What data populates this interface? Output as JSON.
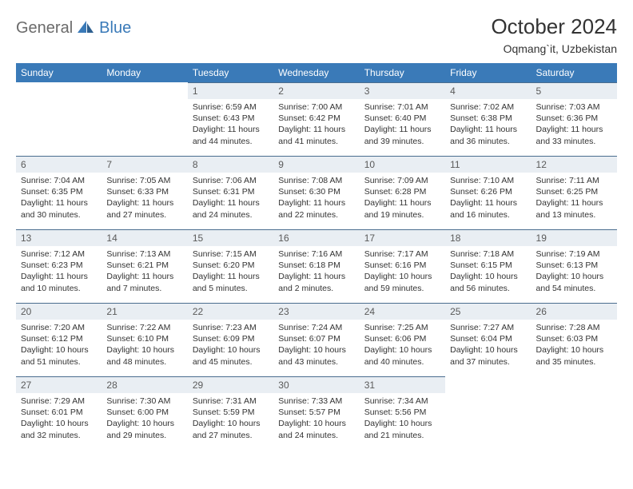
{
  "brand": {
    "part1": "General",
    "part2": "Blue"
  },
  "title": "October 2024",
  "location": "Oqmang`it, Uzbekistan",
  "colors": {
    "header_bg": "#3a7ab8",
    "header_fg": "#ffffff",
    "daynum_bg": "#e9eef3",
    "daynum_border": "#4a6d8f",
    "text": "#333333",
    "logo_gray": "#6b6b6b",
    "logo_blue": "#3a7ab8",
    "page_bg": "#ffffff"
  },
  "weekdays": [
    "Sunday",
    "Monday",
    "Tuesday",
    "Wednesday",
    "Thursday",
    "Friday",
    "Saturday"
  ],
  "layout": {
    "first_day_col": 2,
    "num_days": 31
  },
  "days": {
    "1": {
      "sunrise": "6:59 AM",
      "sunset": "6:43 PM",
      "daylight": "11 hours and 44 minutes."
    },
    "2": {
      "sunrise": "7:00 AM",
      "sunset": "6:42 PM",
      "daylight": "11 hours and 41 minutes."
    },
    "3": {
      "sunrise": "7:01 AM",
      "sunset": "6:40 PM",
      "daylight": "11 hours and 39 minutes."
    },
    "4": {
      "sunrise": "7:02 AM",
      "sunset": "6:38 PM",
      "daylight": "11 hours and 36 minutes."
    },
    "5": {
      "sunrise": "7:03 AM",
      "sunset": "6:36 PM",
      "daylight": "11 hours and 33 minutes."
    },
    "6": {
      "sunrise": "7:04 AM",
      "sunset": "6:35 PM",
      "daylight": "11 hours and 30 minutes."
    },
    "7": {
      "sunrise": "7:05 AM",
      "sunset": "6:33 PM",
      "daylight": "11 hours and 27 minutes."
    },
    "8": {
      "sunrise": "7:06 AM",
      "sunset": "6:31 PM",
      "daylight": "11 hours and 24 minutes."
    },
    "9": {
      "sunrise": "7:08 AM",
      "sunset": "6:30 PM",
      "daylight": "11 hours and 22 minutes."
    },
    "10": {
      "sunrise": "7:09 AM",
      "sunset": "6:28 PM",
      "daylight": "11 hours and 19 minutes."
    },
    "11": {
      "sunrise": "7:10 AM",
      "sunset": "6:26 PM",
      "daylight": "11 hours and 16 minutes."
    },
    "12": {
      "sunrise": "7:11 AM",
      "sunset": "6:25 PM",
      "daylight": "11 hours and 13 minutes."
    },
    "13": {
      "sunrise": "7:12 AM",
      "sunset": "6:23 PM",
      "daylight": "11 hours and 10 minutes."
    },
    "14": {
      "sunrise": "7:13 AM",
      "sunset": "6:21 PM",
      "daylight": "11 hours and 7 minutes."
    },
    "15": {
      "sunrise": "7:15 AM",
      "sunset": "6:20 PM",
      "daylight": "11 hours and 5 minutes."
    },
    "16": {
      "sunrise": "7:16 AM",
      "sunset": "6:18 PM",
      "daylight": "11 hours and 2 minutes."
    },
    "17": {
      "sunrise": "7:17 AM",
      "sunset": "6:16 PM",
      "daylight": "10 hours and 59 minutes."
    },
    "18": {
      "sunrise": "7:18 AM",
      "sunset": "6:15 PM",
      "daylight": "10 hours and 56 minutes."
    },
    "19": {
      "sunrise": "7:19 AM",
      "sunset": "6:13 PM",
      "daylight": "10 hours and 54 minutes."
    },
    "20": {
      "sunrise": "7:20 AM",
      "sunset": "6:12 PM",
      "daylight": "10 hours and 51 minutes."
    },
    "21": {
      "sunrise": "7:22 AM",
      "sunset": "6:10 PM",
      "daylight": "10 hours and 48 minutes."
    },
    "22": {
      "sunrise": "7:23 AM",
      "sunset": "6:09 PM",
      "daylight": "10 hours and 45 minutes."
    },
    "23": {
      "sunrise": "7:24 AM",
      "sunset": "6:07 PM",
      "daylight": "10 hours and 43 minutes."
    },
    "24": {
      "sunrise": "7:25 AM",
      "sunset": "6:06 PM",
      "daylight": "10 hours and 40 minutes."
    },
    "25": {
      "sunrise": "7:27 AM",
      "sunset": "6:04 PM",
      "daylight": "10 hours and 37 minutes."
    },
    "26": {
      "sunrise": "7:28 AM",
      "sunset": "6:03 PM",
      "daylight": "10 hours and 35 minutes."
    },
    "27": {
      "sunrise": "7:29 AM",
      "sunset": "6:01 PM",
      "daylight": "10 hours and 32 minutes."
    },
    "28": {
      "sunrise": "7:30 AM",
      "sunset": "6:00 PM",
      "daylight": "10 hours and 29 minutes."
    },
    "29": {
      "sunrise": "7:31 AM",
      "sunset": "5:59 PM",
      "daylight": "10 hours and 27 minutes."
    },
    "30": {
      "sunrise": "7:33 AM",
      "sunset": "5:57 PM",
      "daylight": "10 hours and 24 minutes."
    },
    "31": {
      "sunrise": "7:34 AM",
      "sunset": "5:56 PM",
      "daylight": "10 hours and 21 minutes."
    }
  },
  "labels": {
    "sunrise": "Sunrise: ",
    "sunset": "Sunset: ",
    "daylight": "Daylight: "
  }
}
